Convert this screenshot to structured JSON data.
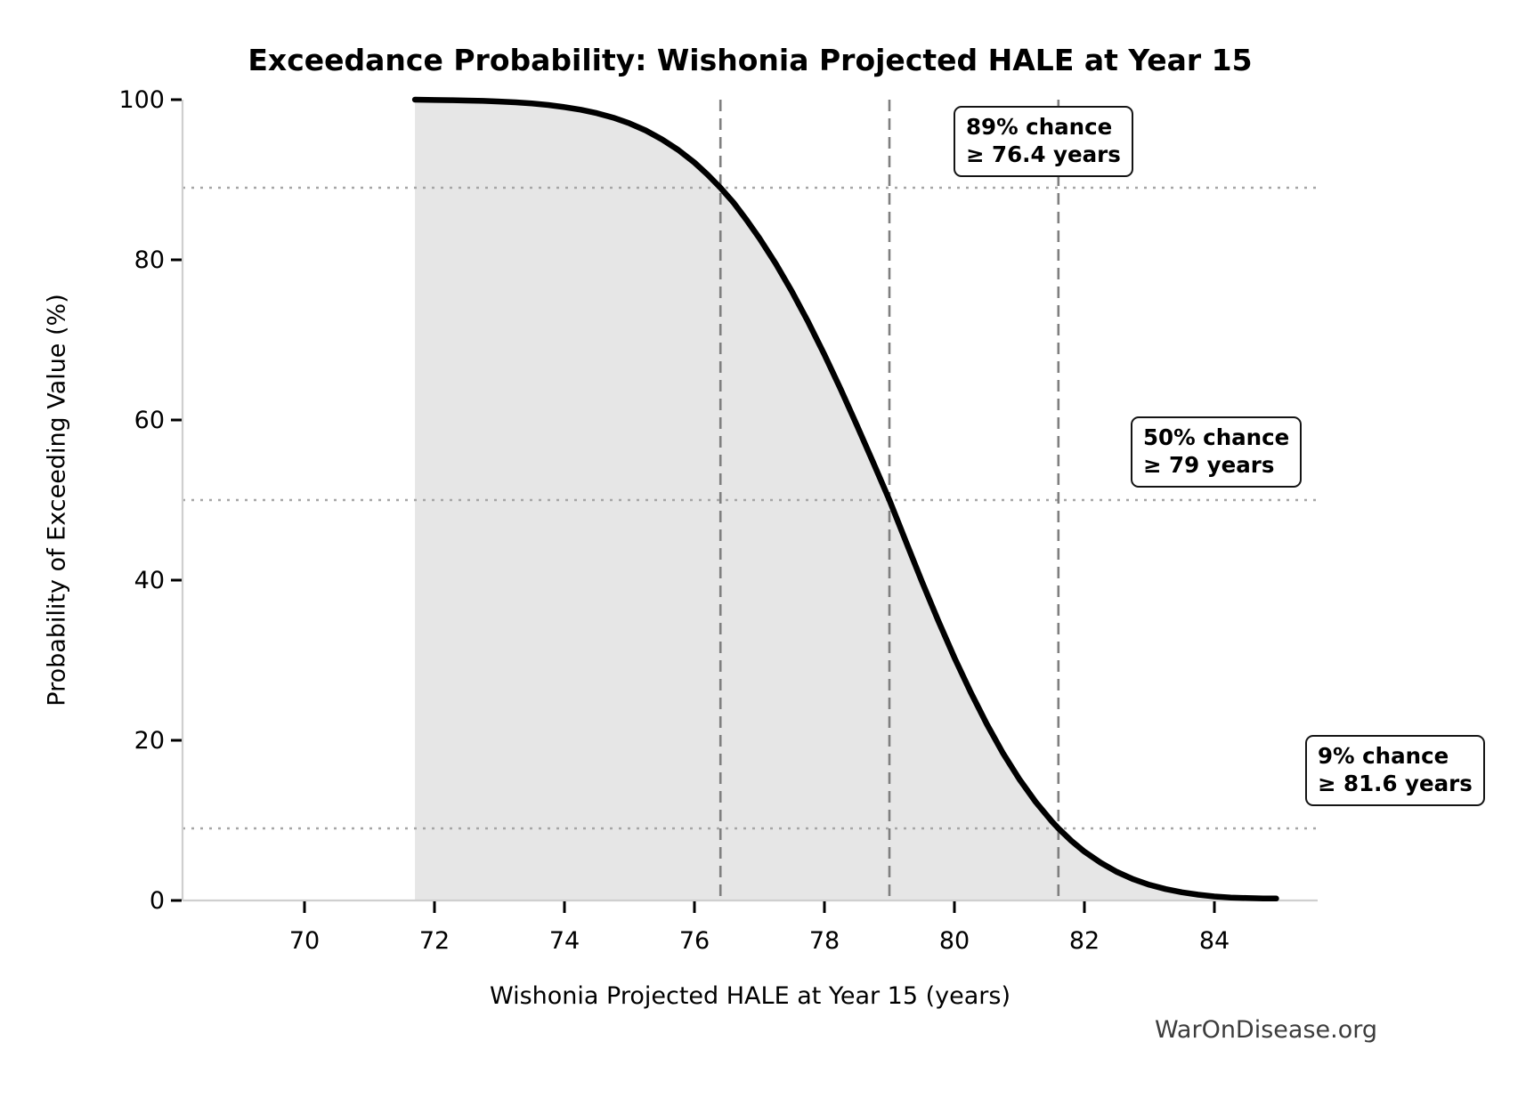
{
  "page": {
    "watermark": "WarOnDisease.org"
  },
  "chart_data": {
    "type": "line",
    "title": "Exceedance Probability: Wishonia Projected HALE at Year 15",
    "xlabel": "Wishonia Projected HALE at Year 15 (years)",
    "ylabel": "Probability of Exceeding Value (%)",
    "xlim": [
      68.1,
      85.6
    ],
    "ylim": [
      0,
      100
    ],
    "x_ticks": [
      70,
      72,
      74,
      76,
      78,
      80,
      82,
      84
    ],
    "y_ticks": [
      0,
      20,
      40,
      60,
      80,
      100
    ],
    "grid": false,
    "legend": "none",
    "line_color": "#000000",
    "fill_color": "#e6e6e6",
    "dashed_line_color": "#7f7f7f",
    "dotted_line_color": "#a6a6a6",
    "spine_color": "#cfcfcf",
    "curve": {
      "x": [
        71.7,
        72.0,
        72.25,
        72.5,
        72.75,
        73.0,
        73.25,
        73.5,
        73.75,
        74.0,
        74.25,
        74.5,
        74.75,
        75.0,
        75.25,
        75.5,
        75.75,
        76.0,
        76.2,
        76.4,
        76.6,
        76.8,
        77.0,
        77.25,
        77.5,
        77.75,
        78.0,
        78.25,
        78.5,
        78.75,
        79.0,
        79.25,
        79.5,
        79.75,
        80.0,
        80.25,
        80.5,
        80.75,
        81.0,
        81.25,
        81.5,
        81.6,
        81.8,
        82.0,
        82.25,
        82.5,
        82.75,
        83.0,
        83.25,
        83.5,
        83.75,
        84.0,
        84.25,
        84.5,
        84.75,
        84.95
      ],
      "exceedance_pct": [
        100.0,
        99.95,
        99.93,
        99.89,
        99.84,
        99.77,
        99.67,
        99.52,
        99.33,
        99.07,
        98.74,
        98.31,
        97.76,
        97.04,
        96.15,
        95.05,
        93.72,
        92.14,
        90.65,
        89.0,
        87.15,
        85.0,
        82.69,
        79.52,
        76.05,
        72.23,
        68.16,
        63.83,
        59.32,
        54.69,
        50.0,
        44.88,
        39.82,
        34.95,
        30.32,
        26.0,
        22.0,
        18.35,
        15.13,
        12.3,
        9.87,
        9.0,
        7.45,
        6.1,
        4.71,
        3.57,
        2.66,
        1.96,
        1.42,
        1.02,
        0.72,
        0.5,
        0.37,
        0.3,
        0.26,
        0.25
      ]
    },
    "reference_lines": {
      "vertical_dashed_x": [
        76.4,
        79,
        81.6
      ],
      "horizontal_dotted_pct": [
        89,
        50,
        9
      ]
    },
    "annotations": [
      {
        "line1": "89% chance",
        "line2": "≥ 76.4 years",
        "x": 76.4,
        "pct": 89
      },
      {
        "line1": "50% chance",
        "line2": "≥ 79 years",
        "x": 79,
        "pct": 50
      },
      {
        "line1": "9% chance",
        "line2": "≥ 81.6 years",
        "x": 81.6,
        "pct": 9
      }
    ]
  }
}
